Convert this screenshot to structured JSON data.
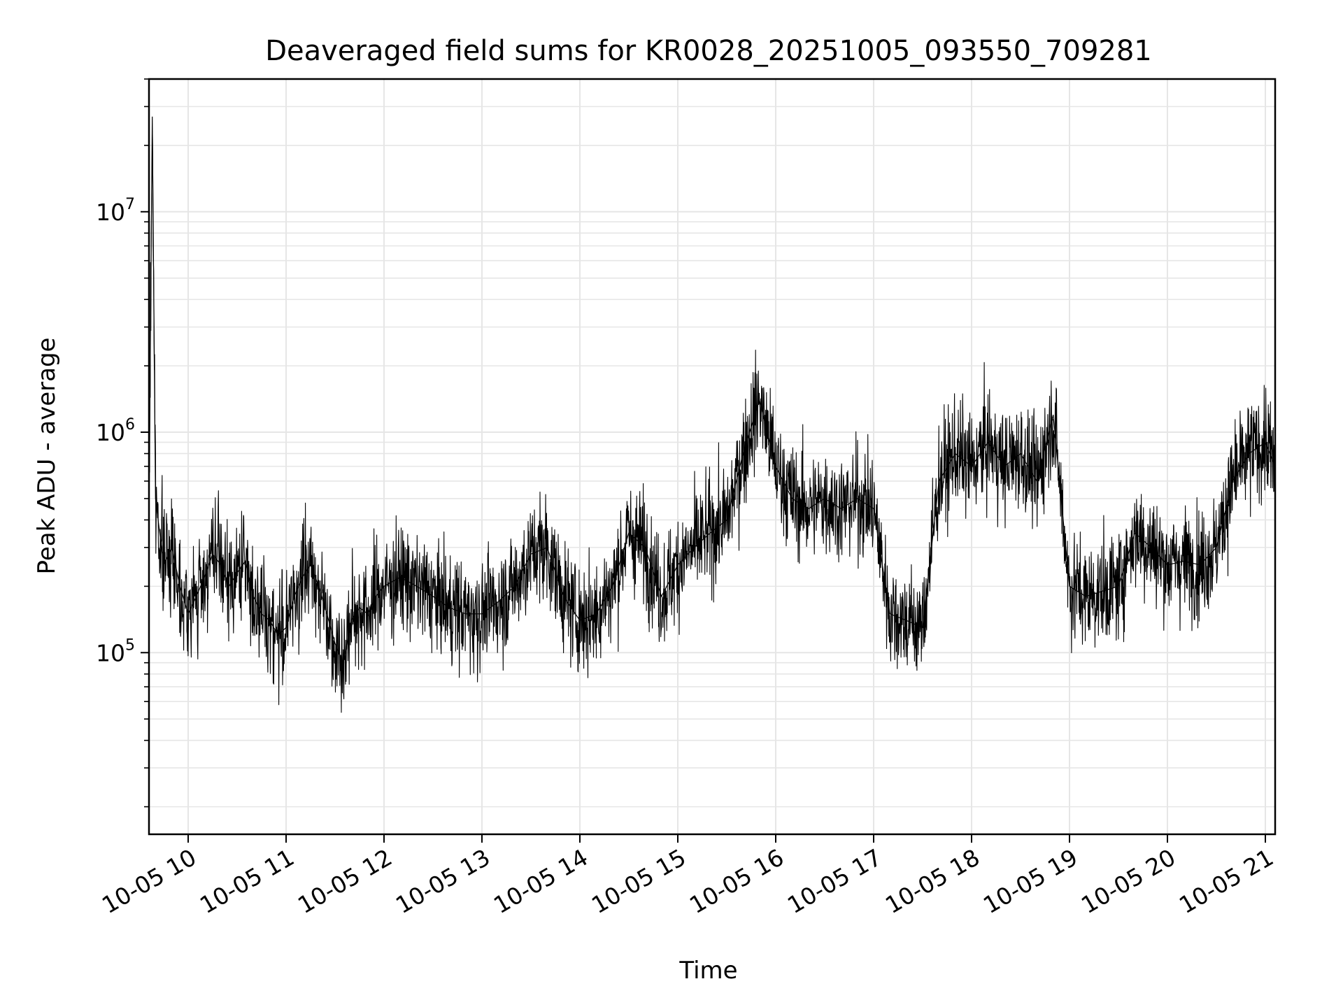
{
  "chart_data": {
    "type": "line",
    "title": "Deaveraged field sums for KR0028_20251005_093550_709281",
    "xlabel": "Time",
    "ylabel": "Peak ADU - average",
    "yscale": "log",
    "xlim": [
      "2025-10-05 09:36",
      "2025-10-05 21:06"
    ],
    "ylim": [
      15000,
      40000000
    ],
    "grid": true,
    "line_color": "#000000",
    "grid_color": "#e6e6e6",
    "x_ticks": [
      {
        "value": "2025-10-05 10:00",
        "label": "10-05 10"
      },
      {
        "value": "2025-10-05 11:00",
        "label": "10-05 11"
      },
      {
        "value": "2025-10-05 12:00",
        "label": "10-05 12"
      },
      {
        "value": "2025-10-05 13:00",
        "label": "10-05 13"
      },
      {
        "value": "2025-10-05 14:00",
        "label": "10-05 14"
      },
      {
        "value": "2025-10-05 15:00",
        "label": "10-05 15"
      },
      {
        "value": "2025-10-05 16:00",
        "label": "10-05 16"
      },
      {
        "value": "2025-10-05 17:00",
        "label": "10-05 17"
      },
      {
        "value": "2025-10-05 18:00",
        "label": "10-05 18"
      },
      {
        "value": "2025-10-05 19:00",
        "label": "10-05 19"
      },
      {
        "value": "2025-10-05 20:00",
        "label": "10-05 20"
      },
      {
        "value": "2025-10-05 21:00",
        "label": "10-05 21"
      }
    ],
    "y_ticks": [
      {
        "value": 100000,
        "base": "10",
        "exp": "5"
      },
      {
        "value": 1000000,
        "base": "10",
        "exp": "6"
      },
      {
        "value": 10000000,
        "base": "10",
        "exp": "7"
      }
    ],
    "series": [
      {
        "x": [
          "2025-10-05 09:36",
          "2025-10-05 09:38",
          "2025-10-05 09:40",
          "2025-10-05 09:45",
          "2025-10-05 09:50",
          "2025-10-05 09:55",
          "2025-10-05 10:00",
          "2025-10-05 10:05",
          "2025-10-05 10:10",
          "2025-10-05 10:15",
          "2025-10-05 10:20",
          "2025-10-05 10:25",
          "2025-10-05 10:30",
          "2025-10-05 10:35",
          "2025-10-05 10:40",
          "2025-10-05 10:45",
          "2025-10-05 10:50",
          "2025-10-05 10:55",
          "2025-10-05 11:00",
          "2025-10-05 11:05",
          "2025-10-05 11:10",
          "2025-10-05 11:15",
          "2025-10-05 11:20",
          "2025-10-05 11:25",
          "2025-10-05 11:30",
          "2025-10-05 11:35",
          "2025-10-05 11:40",
          "2025-10-05 11:45",
          "2025-10-05 11:50",
          "2025-10-05 11:55",
          "2025-10-05 12:00",
          "2025-10-05 12:10",
          "2025-10-05 12:20",
          "2025-10-05 12:30",
          "2025-10-05 12:40",
          "2025-10-05 12:50",
          "2025-10-05 13:00",
          "2025-10-05 13:10",
          "2025-10-05 13:20",
          "2025-10-05 13:30",
          "2025-10-05 13:40",
          "2025-10-05 13:50",
          "2025-10-05 14:00",
          "2025-10-05 14:10",
          "2025-10-05 14:20",
          "2025-10-05 14:30",
          "2025-10-05 14:40",
          "2025-10-05 14:50",
          "2025-10-05 15:00",
          "2025-10-05 15:10",
          "2025-10-05 15:20",
          "2025-10-05 15:30",
          "2025-10-05 15:40",
          "2025-10-05 15:50",
          "2025-10-05 16:00",
          "2025-10-05 16:10",
          "2025-10-05 16:20",
          "2025-10-05 16:30",
          "2025-10-05 16:40",
          "2025-10-05 16:50",
          "2025-10-05 17:00",
          "2025-10-05 17:10",
          "2025-10-05 17:20",
          "2025-10-05 17:30",
          "2025-10-05 17:40",
          "2025-10-05 17:50",
          "2025-10-05 18:00",
          "2025-10-05 18:10",
          "2025-10-05 18:20",
          "2025-10-05 18:30",
          "2025-10-05 18:40",
          "2025-10-05 18:50",
          "2025-10-05 19:00",
          "2025-10-05 19:10",
          "2025-10-05 19:20",
          "2025-10-05 19:30",
          "2025-10-05 19:40",
          "2025-10-05 19:50",
          "2025-10-05 20:00",
          "2025-10-05 20:10",
          "2025-10-05 20:20",
          "2025-10-05 20:30",
          "2025-10-05 20:40",
          "2025-10-05 20:50",
          "2025-10-05 21:00",
          "2025-10-05 21:06"
        ],
        "y": [
          400000,
          27000000,
          500000,
          250000,
          300000,
          200000,
          150000,
          180000,
          220000,
          280000,
          250000,
          200000,
          230000,
          260000,
          180000,
          150000,
          140000,
          120000,
          130000,
          180000,
          220000,
          250000,
          200000,
          150000,
          110000,
          90000,
          140000,
          160000,
          150000,
          180000,
          200000,
          220000,
          200000,
          180000,
          160000,
          150000,
          150000,
          170000,
          200000,
          280000,
          300000,
          180000,
          140000,
          150000,
          200000,
          350000,
          300000,
          180000,
          250000,
          300000,
          350000,
          400000,
          800000,
          1400000,
          700000,
          500000,
          450000,
          500000,
          450000,
          500000,
          450000,
          150000,
          140000,
          130000,
          600000,
          800000,
          700000,
          900000,
          700000,
          800000,
          600000,
          1200000,
          200000,
          180000,
          190000,
          200000,
          350000,
          300000,
          250000,
          260000,
          250000,
          300000,
          600000,
          800000,
          900000,
          700000
        ]
      }
    ]
  }
}
